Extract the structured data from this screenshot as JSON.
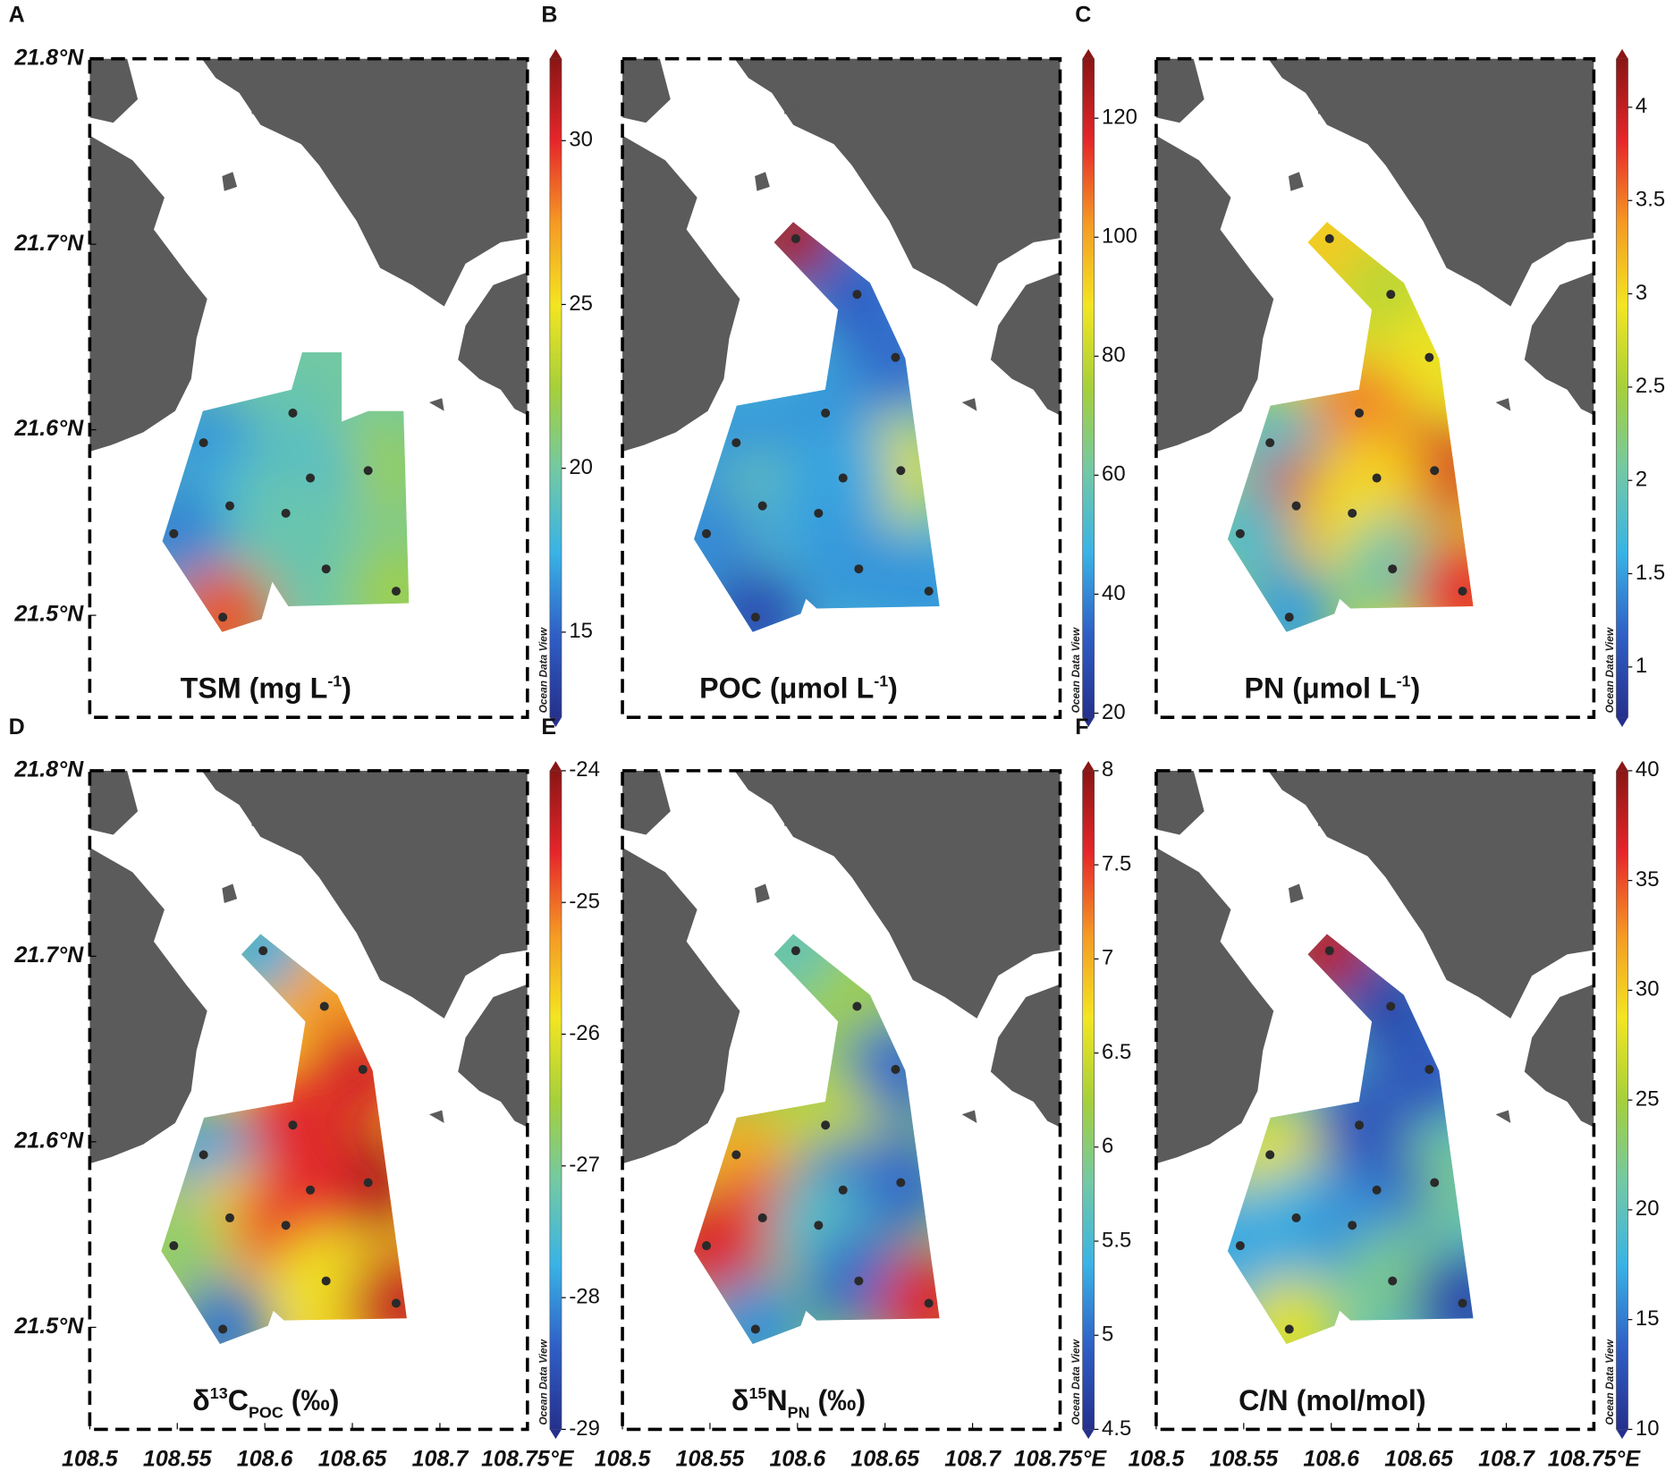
{
  "chart_data": [
    {
      "type": "map",
      "label": "A",
      "title": [
        {
          "text": "TSM (mg L"
        },
        {
          "text": "-1",
          "shift": "sup"
        },
        {
          "text": ")"
        }
      ],
      "watermark": "Ocean Data View",
      "x": [
        108.616,
        108.565,
        108.659,
        108.626,
        108.58,
        108.612,
        108.548,
        108.635,
        108.675,
        108.576
      ],
      "y": [
        21.609,
        21.593,
        21.578,
        21.574,
        21.559,
        21.555,
        21.544,
        21.525,
        21.513,
        21.499
      ],
      "values": [
        19.5,
        16.5,
        22,
        18.5,
        18,
        19.5,
        16,
        19.5,
        22,
        29
      ],
      "xlim": [
        108.5,
        108.75
      ],
      "ylim": [
        21.445,
        21.8
      ],
      "yticks": [
        {
          "value": 21.5,
          "label": "21.5°N"
        },
        {
          "value": 21.6,
          "label": "21.6°N"
        },
        {
          "value": 21.7,
          "label": "21.7°N"
        },
        {
          "value": 21.8,
          "label": "21.8°N"
        }
      ],
      "clim": [
        12.4,
        32.5
      ],
      "cticks": [
        15,
        20,
        25,
        30
      ],
      "colormap": [
        "#25308d",
        "#2f5fc6",
        "#39b3e6",
        "#72c9a4",
        "#a6d03a",
        "#f3e522",
        "#f59a24",
        "#e6262a",
        "#8a1515"
      ]
    },
    {
      "type": "map",
      "label": "B",
      "title": [
        {
          "text": "POC (μmol L"
        },
        {
          "text": "-1",
          "shift": "sup"
        },
        {
          "text": ")"
        }
      ],
      "watermark": "Ocean Data View",
      "x": [
        108.599,
        108.634,
        108.656,
        108.616,
        108.565,
        108.659,
        108.626,
        108.58,
        108.612,
        108.548,
        108.635,
        108.675,
        108.576
      ],
      "y": [
        21.703,
        21.673,
        21.639,
        21.609,
        21.593,
        21.578,
        21.574,
        21.559,
        21.555,
        21.544,
        21.525,
        21.513,
        21.499
      ],
      "values": [
        125,
        33,
        35,
        42,
        42,
        85,
        45,
        58,
        44,
        40,
        42,
        42,
        28
      ],
      "xlim": [
        108.5,
        108.75
      ],
      "ylim": [
        21.445,
        21.8
      ],
      "clim": [
        19.3,
        130
      ],
      "cticks": [
        20,
        40,
        60,
        80,
        100,
        120
      ],
      "colormap": [
        "#25308d",
        "#2f5fc6",
        "#39b3e6",
        "#72c9a4",
        "#a6d03a",
        "#f3e522",
        "#f59a24",
        "#e6262a",
        "#8a1515"
      ]
    },
    {
      "type": "map",
      "label": "C",
      "title": [
        {
          "text": "PN (μmol L"
        },
        {
          "text": "-1",
          "shift": "sup"
        },
        {
          "text": ")"
        }
      ],
      "watermark": "Ocean Data View",
      "x": [
        108.599,
        108.634,
        108.656,
        108.616,
        108.565,
        108.659,
        108.626,
        108.58,
        108.612,
        108.548,
        108.635,
        108.675,
        108.576
      ],
      "y": [
        21.703,
        21.673,
        21.639,
        21.609,
        21.593,
        21.578,
        21.574,
        21.559,
        21.555,
        21.544,
        21.525,
        21.513,
        21.499
      ],
      "values": [
        3.1,
        2.6,
        2.9,
        3.5,
        1.8,
        3.9,
        3.1,
        3.9,
        3.0,
        1.8,
        2.0,
        3.8,
        1.5
      ],
      "xlim": [
        108.5,
        108.75
      ],
      "ylim": [
        21.445,
        21.8
      ],
      "clim": [
        0.73,
        4.26
      ],
      "cticks": [
        1,
        1.5,
        2,
        2.5,
        3,
        3.5,
        4
      ],
      "colormap": [
        "#25308d",
        "#2f5fc6",
        "#39b3e6",
        "#72c9a4",
        "#a6d03a",
        "#f3e522",
        "#f59a24",
        "#e6262a",
        "#8a1515"
      ]
    },
    {
      "type": "map",
      "label": "D",
      "title": [
        {
          "text": "δ"
        },
        {
          "text": "13",
          "shift": "sup"
        },
        {
          "text": "C"
        },
        {
          "text": "POC",
          "shift": "sub"
        },
        {
          "text": " (‰)"
        }
      ],
      "watermark": "Ocean Data View",
      "x": [
        108.599,
        108.634,
        108.656,
        108.616,
        108.565,
        108.659,
        108.626,
        108.58,
        108.612,
        108.548,
        108.635,
        108.675,
        108.576
      ],
      "y": [
        21.703,
        21.673,
        21.639,
        21.609,
        21.593,
        21.578,
        21.574,
        21.559,
        21.555,
        21.544,
        21.525,
        21.513,
        21.499
      ],
      "values": [
        -27.8,
        -25.3,
        -24.5,
        -24.6,
        -27.9,
        -24.2,
        -24.6,
        -25.7,
        -24.7,
        -26.8,
        -25.9,
        -24.4,
        -28.2
      ],
      "xlim": [
        108.5,
        108.75
      ],
      "ylim": [
        21.445,
        21.8
      ],
      "xticks": [
        108.5,
        108.55,
        108.6,
        108.65,
        108.7,
        {
          "value": 108.75,
          "label": "108.75°E"
        }
      ],
      "yticks": [
        {
          "value": 21.5,
          "label": "21.5°N"
        },
        {
          "value": 21.6,
          "label": "21.6°N"
        },
        {
          "value": 21.7,
          "label": "21.7°N"
        },
        {
          "value": 21.8,
          "label": "21.8°N"
        }
      ],
      "clim": [
        -29,
        -24
      ],
      "cticks": [
        -29,
        -28,
        -27,
        -26,
        -25,
        -24
      ],
      "colormap": [
        "#25308d",
        "#2f5fc6",
        "#39b3e6",
        "#72c9a4",
        "#a6d03a",
        "#f3e522",
        "#f59a24",
        "#e6262a",
        "#8a1515"
      ]
    },
    {
      "type": "map",
      "label": "E",
      "title": [
        {
          "text": "δ"
        },
        {
          "text": "15",
          "shift": "sup"
        },
        {
          "text": "N"
        },
        {
          "text": "PN",
          "shift": "sub"
        },
        {
          "text": " (‰)"
        }
      ],
      "watermark": "Ocean Data View",
      "x": [
        108.599,
        108.634,
        108.656,
        108.616,
        108.565,
        108.659,
        108.626,
        108.58,
        108.612,
        108.548,
        108.635,
        108.675,
        108.576
      ],
      "y": [
        21.703,
        21.673,
        21.639,
        21.609,
        21.593,
        21.578,
        21.574,
        21.559,
        21.555,
        21.544,
        21.525,
        21.513,
        21.499
      ],
      "values": [
        5.7,
        6.2,
        5.0,
        6.4,
        7.0,
        5.0,
        5.0,
        7.5,
        5.6,
        7.6,
        5.0,
        7.6,
        5.2
      ],
      "xlim": [
        108.5,
        108.75
      ],
      "ylim": [
        21.445,
        21.8
      ],
      "xticks": [
        108.5,
        108.55,
        108.6,
        108.65,
        108.7,
        {
          "value": 108.75,
          "label": "108.75°E"
        }
      ],
      "clim": [
        4.5,
        8
      ],
      "cticks": [
        4.5,
        5,
        5.5,
        6,
        6.5,
        7,
        7.5,
        8
      ],
      "colormap": [
        "#25308d",
        "#2f5fc6",
        "#39b3e6",
        "#72c9a4",
        "#a6d03a",
        "#f3e522",
        "#f59a24",
        "#e6262a",
        "#8a1515"
      ]
    },
    {
      "type": "map",
      "label": "F",
      "title": [
        {
          "text": "C/N (mol/mol)"
        }
      ],
      "watermark": "Ocean Data View",
      "x": [
        108.599,
        108.634,
        108.656,
        108.616,
        108.565,
        108.659,
        108.626,
        108.58,
        108.612,
        108.548,
        108.635,
        108.675,
        108.576
      ],
      "y": [
        21.703,
        21.673,
        21.639,
        21.609,
        21.593,
        21.578,
        21.574,
        21.559,
        21.555,
        21.544,
        21.525,
        21.513,
        21.499
      ],
      "values": [
        38,
        12,
        13,
        13,
        28,
        22,
        13,
        18,
        16,
        17,
        22,
        12,
        28
      ],
      "xlim": [
        108.5,
        108.75
      ],
      "ylim": [
        21.445,
        21.8
      ],
      "xticks": [
        108.5,
        108.55,
        108.6,
        108.65,
        108.7,
        {
          "value": 108.75,
          "label": "108.75°E"
        }
      ],
      "clim": [
        10,
        40
      ],
      "cticks": [
        10,
        15,
        20,
        25,
        30,
        35,
        40
      ],
      "colormap": [
        "#25308d",
        "#2f5fc6",
        "#39b3e6",
        "#72c9a4",
        "#a6d03a",
        "#f3e522",
        "#f59a24",
        "#e6262a",
        "#8a1515"
      ]
    }
  ]
}
